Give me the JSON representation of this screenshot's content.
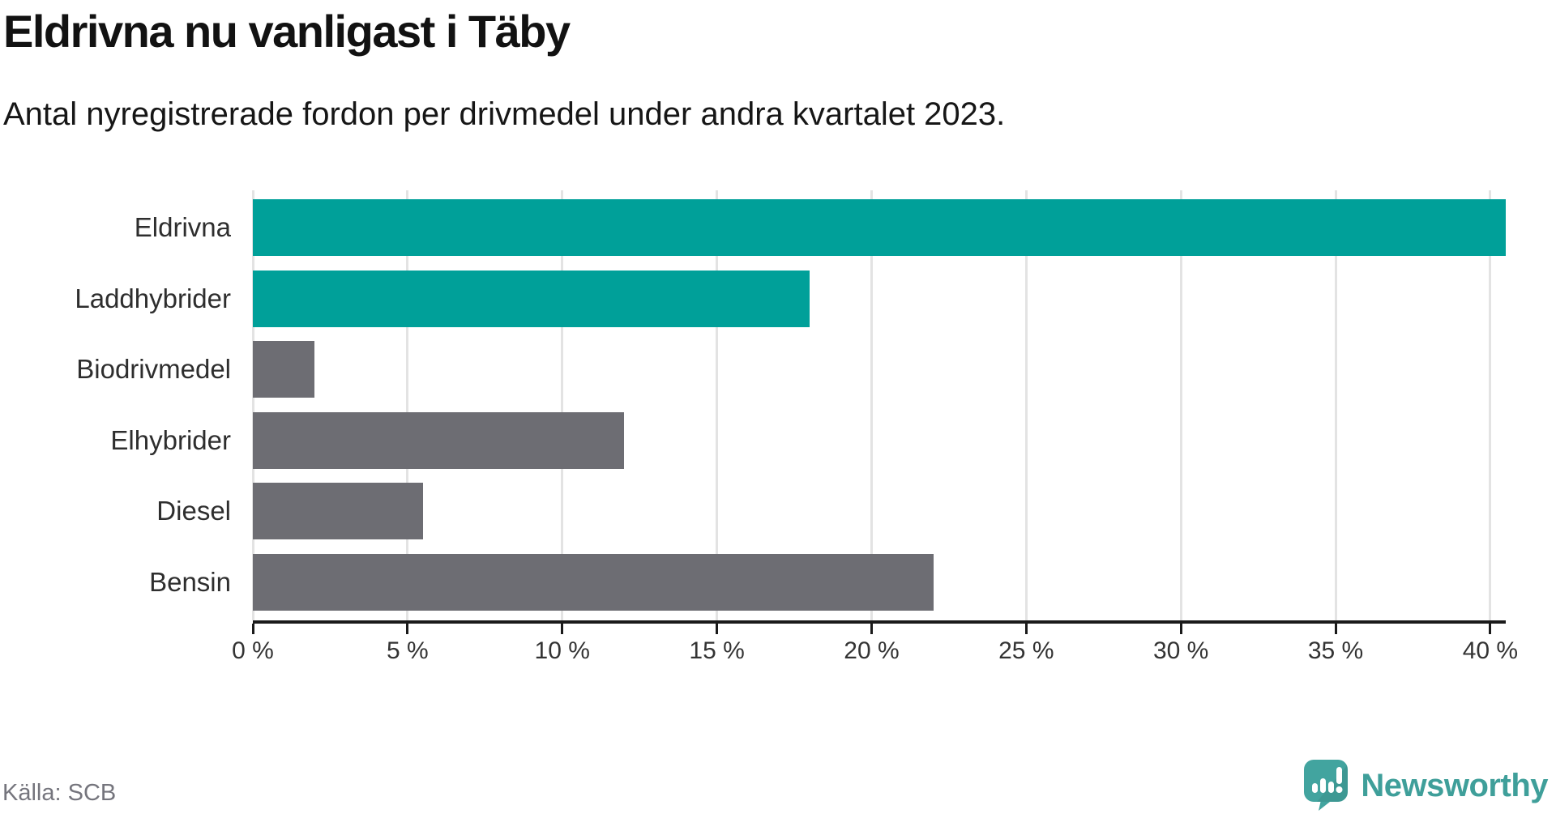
{
  "header": {
    "title": "Eldrivna nu vanligast i Täby",
    "subtitle": "Antal nyregistrerade fordon per drivmedel under andra kvartalet 2023."
  },
  "chart_data": {
    "type": "bar",
    "orientation": "horizontal",
    "title": "Eldrivna nu vanligast i Täby",
    "subtitle": "Antal nyregistrerade fordon per drivmedel under andra kvartalet 2023.",
    "categories": [
      "Eldrivna",
      "Laddhybrider",
      "Biodrivmedel",
      "Elhybrider",
      "Diesel",
      "Bensin"
    ],
    "values": [
      40.5,
      18,
      2,
      12,
      5.5,
      22
    ],
    "unit": "%",
    "bar_colors": [
      "#00a099",
      "#00a099",
      "#6d6d73",
      "#6d6d73",
      "#6d6d73",
      "#6d6d73"
    ],
    "xlim": [
      0,
      40.5
    ],
    "x_ticks": [
      0,
      5,
      10,
      15,
      20,
      25,
      30,
      35,
      40
    ],
    "x_tick_labels": [
      "0 %",
      "5 %",
      "10 %",
      "15 %",
      "20 %",
      "25 %",
      "30 %",
      "35 %",
      "40 %"
    ],
    "grid": true,
    "legend": "none",
    "source": "Källa: SCB"
  },
  "footer": {
    "source": "Källa: SCB",
    "brand": "Newsworthy"
  },
  "colors": {
    "accent_teal": "#00a099",
    "neutral_gray": "#6d6d73",
    "gridline": "#e3e3e3",
    "axis": "#1a1a1a",
    "logo_teal": "#42a49f"
  }
}
